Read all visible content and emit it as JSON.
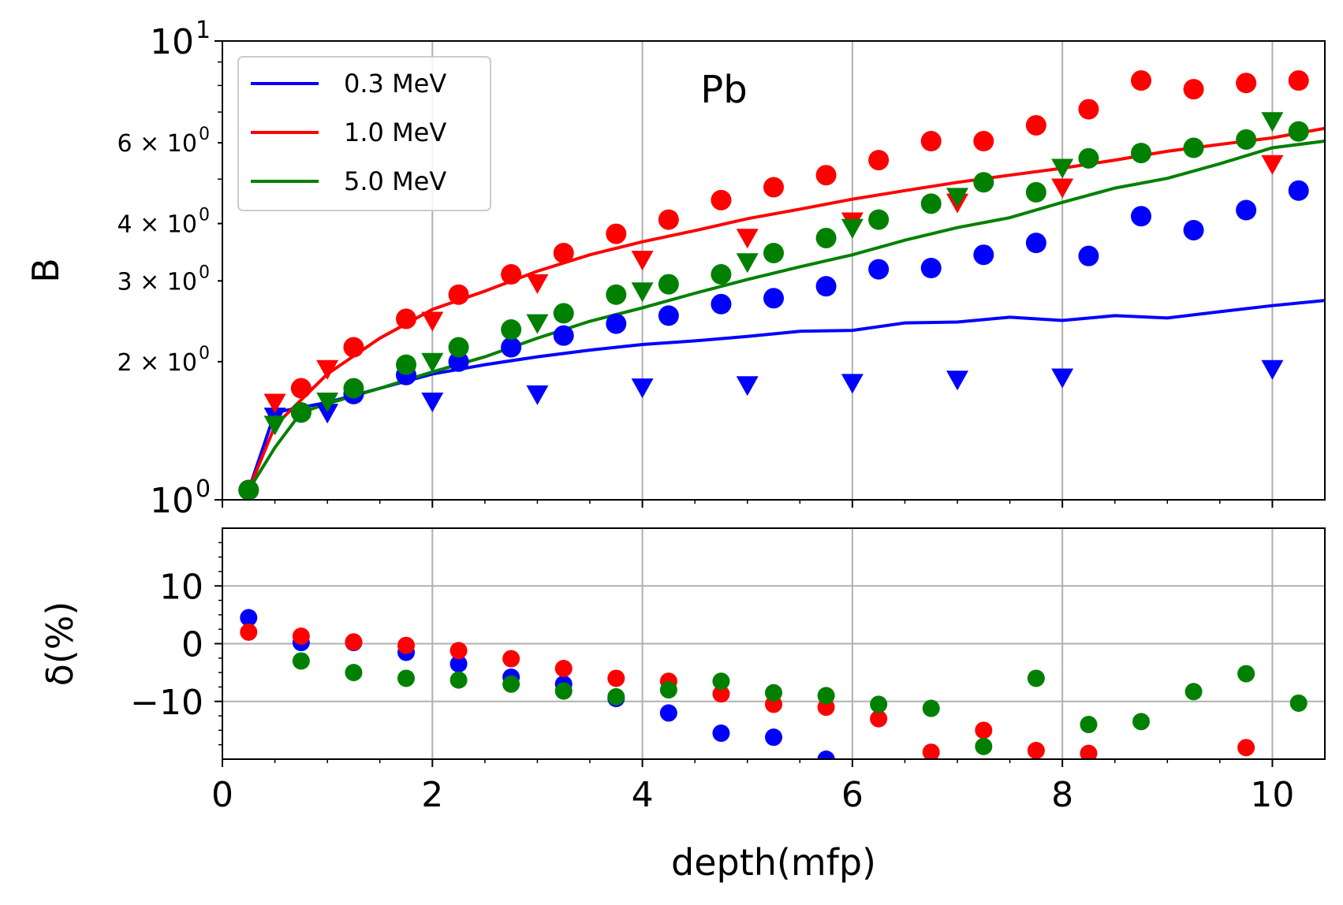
{
  "chart_data": [
    {
      "type": "line",
      "panel": "top",
      "annotation": "Pb",
      "xlabel": "",
      "ylabel": "B",
      "xlim": [
        0,
        10.5
      ],
      "ylim": [
        1,
        10
      ],
      "yscale": "log",
      "grid": "x",
      "legend": "top-left",
      "y_ticks": [
        {
          "value": 1,
          "base": "10",
          "exp": "0",
          "style": "major"
        },
        {
          "value": 2,
          "base": "2 × 10",
          "exp": "0",
          "style": "minor"
        },
        {
          "value": 3,
          "base": "3 × 10",
          "exp": "0",
          "style": "minor"
        },
        {
          "value": 4,
          "base": "4 × 10",
          "exp": "0",
          "style": "minor"
        },
        {
          "value": 6,
          "base": "6 × 10",
          "exp": "0",
          "style": "minor"
        },
        {
          "value": 10,
          "base": "10",
          "exp": "1",
          "style": "major"
        }
      ],
      "series": [
        {
          "name": "0.3 MeV",
          "color": "#0000ff",
          "line": [
            [
              0.25,
              1.05
            ],
            [
              0.5,
              1.55
            ],
            [
              1,
              1.63
            ],
            [
              1.5,
              1.75
            ],
            [
              2,
              1.88
            ],
            [
              2.5,
              1.97
            ],
            [
              3,
              2.05
            ],
            [
              3.5,
              2.12
            ],
            [
              4,
              2.18
            ],
            [
              4.5,
              2.22
            ],
            [
              5,
              2.27
            ],
            [
              5.5,
              2.33
            ],
            [
              6,
              2.34
            ],
            [
              6.5,
              2.43
            ],
            [
              7,
              2.44
            ],
            [
              7.5,
              2.5
            ],
            [
              8,
              2.46
            ],
            [
              8.5,
              2.52
            ],
            [
              9,
              2.49
            ],
            [
              9.5,
              2.57
            ],
            [
              10,
              2.65
            ],
            [
              10.5,
              2.72
            ]
          ],
          "circles": [
            [
              0.25,
              1.05
            ],
            [
              0.75,
              1.55
            ],
            [
              1.25,
              1.7
            ],
            [
              1.75,
              1.87
            ],
            [
              2.25,
              2.0
            ],
            [
              2.75,
              2.15
            ],
            [
              3.25,
              2.28
            ],
            [
              3.75,
              2.42
            ],
            [
              4.25,
              2.52
            ],
            [
              4.75,
              2.67
            ],
            [
              5.25,
              2.75
            ],
            [
              5.75,
              2.92
            ],
            [
              6.25,
              3.18
            ],
            [
              6.75,
              3.2
            ],
            [
              7.25,
              3.42
            ],
            [
              7.75,
              3.63
            ],
            [
              8.25,
              3.4
            ],
            [
              8.75,
              4.15
            ],
            [
              9.25,
              3.87
            ],
            [
              9.75,
              4.28
            ],
            [
              10.25,
              4.72
            ]
          ],
          "triangles": [
            [
              0.5,
              1.52
            ],
            [
              1,
              1.55
            ],
            [
              2,
              1.64
            ],
            [
              3,
              1.7
            ],
            [
              4,
              1.76
            ],
            [
              5,
              1.78
            ],
            [
              6,
              1.8
            ],
            [
              7,
              1.83
            ],
            [
              8,
              1.85
            ],
            [
              10,
              1.93
            ]
          ]
        },
        {
          "name": "1.0 MeV",
          "color": "#ff0000",
          "line": [
            [
              0.25,
              1.05
            ],
            [
              0.5,
              1.45
            ],
            [
              1,
              1.88
            ],
            [
              1.5,
              2.25
            ],
            [
              2,
              2.6
            ],
            [
              2.5,
              2.85
            ],
            [
              3,
              3.15
            ],
            [
              3.5,
              3.42
            ],
            [
              4,
              3.65
            ],
            [
              4.5,
              3.86
            ],
            [
              5,
              4.1
            ],
            [
              5.5,
              4.3
            ],
            [
              6,
              4.52
            ],
            [
              6.5,
              4.72
            ],
            [
              7,
              4.92
            ],
            [
              7.5,
              5.1
            ],
            [
              8,
              5.28
            ],
            [
              8.5,
              5.5
            ],
            [
              9,
              5.75
            ],
            [
              9.5,
              5.95
            ],
            [
              10,
              6.15
            ],
            [
              10.5,
              6.45
            ]
          ],
          "circles": [
            [
              0.25,
              1.05
            ],
            [
              0.75,
              1.75
            ],
            [
              1.25,
              2.15
            ],
            [
              1.75,
              2.48
            ],
            [
              2.25,
              2.8
            ],
            [
              2.75,
              3.1
            ],
            [
              3.25,
              3.45
            ],
            [
              3.75,
              3.8
            ],
            [
              4.25,
              4.08
            ],
            [
              4.75,
              4.5
            ],
            [
              5.25,
              4.8
            ],
            [
              5.75,
              5.1
            ],
            [
              6.25,
              5.5
            ],
            [
              6.75,
              6.05
            ],
            [
              7.25,
              6.05
            ],
            [
              7.75,
              6.55
            ],
            [
              8.25,
              7.1
            ],
            [
              8.75,
              8.2
            ],
            [
              9.25,
              7.85
            ],
            [
              9.75,
              8.1
            ],
            [
              10.25,
              8.2
            ]
          ],
          "triangles": [
            [
              0.5,
              1.63
            ],
            [
              1,
              1.93
            ],
            [
              2,
              2.46
            ],
            [
              3,
              2.97
            ],
            [
              4,
              3.34
            ],
            [
              5,
              3.73
            ],
            [
              6,
              4.05
            ],
            [
              7,
              4.45
            ],
            [
              8,
              4.8
            ],
            [
              10,
              5.4
            ]
          ]
        },
        {
          "name": "5.0 MeV",
          "color": "#008000",
          "line": [
            [
              0.25,
              1.05
            ],
            [
              0.5,
              1.3
            ],
            [
              0.75,
              1.55
            ],
            [
              1,
              1.62
            ],
            [
              1.5,
              1.75
            ],
            [
              2,
              1.9
            ],
            [
              2.5,
              2.05
            ],
            [
              3,
              2.25
            ],
            [
              3.5,
              2.45
            ],
            [
              4,
              2.62
            ],
            [
              4.5,
              2.82
            ],
            [
              5,
              3.02
            ],
            [
              5.5,
              3.22
            ],
            [
              6,
              3.42
            ],
            [
              6.5,
              3.68
            ],
            [
              7,
              3.92
            ],
            [
              7.5,
              4.12
            ],
            [
              8,
              4.45
            ],
            [
              8.5,
              4.78
            ],
            [
              9,
              5.02
            ],
            [
              9.5,
              5.4
            ],
            [
              10,
              5.85
            ],
            [
              10.5,
              6.05
            ]
          ],
          "circles": [
            [
              0.25,
              1.05
            ],
            [
              0.75,
              1.55
            ],
            [
              1.25,
              1.75
            ],
            [
              1.75,
              1.97
            ],
            [
              2.25,
              2.15
            ],
            [
              2.75,
              2.35
            ],
            [
              3.25,
              2.55
            ],
            [
              3.75,
              2.8
            ],
            [
              4.25,
              2.95
            ],
            [
              4.75,
              3.1
            ],
            [
              5.25,
              3.45
            ],
            [
              5.75,
              3.72
            ],
            [
              6.25,
              4.08
            ],
            [
              6.75,
              4.42
            ],
            [
              7.25,
              4.92
            ],
            [
              7.75,
              4.68
            ],
            [
              8.25,
              5.55
            ],
            [
              8.75,
              5.7
            ],
            [
              9.25,
              5.85
            ],
            [
              9.75,
              6.1
            ],
            [
              10.25,
              6.35
            ]
          ],
          "triangles": [
            [
              0.5,
              1.46
            ],
            [
              1,
              1.64
            ],
            [
              2,
              2.0
            ],
            [
              3,
              2.43
            ],
            [
              4,
              2.85
            ],
            [
              5,
              3.3
            ],
            [
              6,
              3.92
            ],
            [
              7,
              4.58
            ],
            [
              8,
              5.3
            ],
            [
              10,
              6.7
            ]
          ]
        }
      ]
    },
    {
      "type": "scatter",
      "panel": "bottom",
      "xlabel": "depth(mfp)",
      "ylabel": "δ(%)",
      "xlim": [
        0,
        10.5
      ],
      "ylim": [
        -20,
        20
      ],
      "x_ticks": [
        "0",
        "2",
        "4",
        "6",
        "8",
        "10"
      ],
      "y_ticks": [
        "10",
        "0",
        "−10"
      ],
      "grid": "both",
      "series": [
        {
          "name": "0.3 MeV",
          "color": "#0000ff",
          "points": [
            [
              0.25,
              4.5
            ],
            [
              0.75,
              0.2
            ],
            [
              1.25,
              0.2
            ],
            [
              1.75,
              -1.5
            ],
            [
              2.25,
              -3.5
            ],
            [
              2.75,
              -5.8
            ],
            [
              3.25,
              -7.0
            ],
            [
              3.75,
              -9.5
            ],
            [
              4.25,
              -12.0
            ],
            [
              4.75,
              -15.5
            ],
            [
              5.25,
              -16.2
            ],
            [
              5.75,
              -20.0
            ]
          ]
        },
        {
          "name": "1.0 MeV",
          "color": "#ff0000",
          "points": [
            [
              0.25,
              2.0
            ],
            [
              0.75,
              1.3
            ],
            [
              1.25,
              0.3
            ],
            [
              1.75,
              -0.3
            ],
            [
              2.25,
              -1.2
            ],
            [
              2.75,
              -2.6
            ],
            [
              3.25,
              -4.3
            ],
            [
              3.75,
              -6.0
            ],
            [
              4.25,
              -6.5
            ],
            [
              4.75,
              -8.7
            ],
            [
              5.25,
              -10.5
            ],
            [
              5.75,
              -11.0
            ],
            [
              6.25,
              -13.0
            ],
            [
              6.75,
              -18.8
            ],
            [
              7.25,
              -15.0
            ],
            [
              7.75,
              -18.5
            ],
            [
              8.25,
              -19.0
            ],
            [
              9.75,
              -18.0
            ]
          ]
        },
        {
          "name": "5.0 MeV",
          "color": "#008000",
          "points": [
            [
              0.75,
              -3.0
            ],
            [
              1.25,
              -5.0
            ],
            [
              1.75,
              -6.0
            ],
            [
              2.25,
              -6.3
            ],
            [
              2.75,
              -7.0
            ],
            [
              3.25,
              -8.2
            ],
            [
              3.75,
              -9.2
            ],
            [
              4.25,
              -8.0
            ],
            [
              4.75,
              -6.5
            ],
            [
              5.25,
              -8.5
            ],
            [
              5.75,
              -9.0
            ],
            [
              6.25,
              -10.5
            ],
            [
              6.75,
              -11.2
            ],
            [
              7.25,
              -17.8
            ],
            [
              7.75,
              -6.0
            ],
            [
              8.25,
              -14.0
            ],
            [
              8.75,
              -13.5
            ],
            [
              9.25,
              -8.3
            ],
            [
              9.75,
              -5.2
            ],
            [
              10.25,
              -10.3
            ]
          ]
        }
      ]
    }
  ]
}
